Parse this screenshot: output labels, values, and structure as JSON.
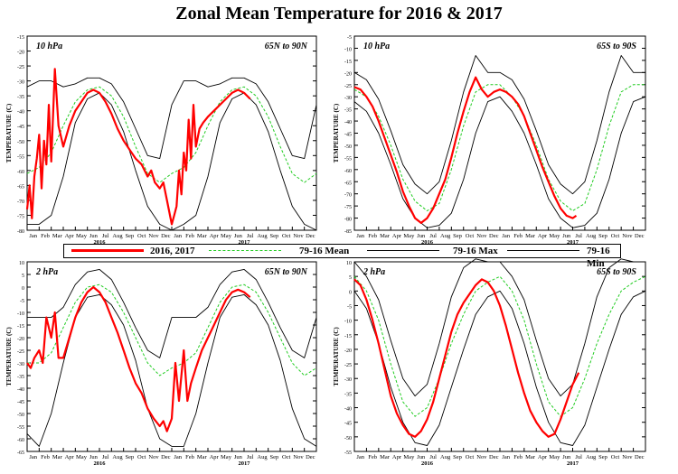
{
  "title": "Zonal Mean Temperature for 2016 & 2017",
  "legend": {
    "items": [
      {
        "label": "2016, 2017",
        "color": "#ff0000",
        "style": "solid-thick"
      },
      {
        "label": "79-16 Mean",
        "color": "#22cc22",
        "style": "dashed"
      },
      {
        "label": "79-16 Max",
        "color": "#000000",
        "style": "solid"
      },
      {
        "label": "79-16 Min",
        "color": "#000000",
        "style": "solid"
      }
    ]
  },
  "chart_data": [
    {
      "type": "line",
      "id": "tl",
      "level": "10 hPa",
      "region": "65N to 90N",
      "ylabel": "TEMPERATURE (C)",
      "ylim": [
        -80,
        -15
      ],
      "yticks": [
        -15,
        -20,
        -25,
        -30,
        -35,
        -40,
        -45,
        -50,
        -55,
        -60,
        -65,
        -70,
        -75,
        -80
      ],
      "x_months": [
        "Jan",
        "Feb",
        "Mar",
        "Apr",
        "May",
        "Jun",
        "Jul",
        "Aug",
        "Sep",
        "Oct",
        "Nov",
        "Dec",
        "Jan",
        "Feb",
        "Mar",
        "Apr",
        "May",
        "Jun",
        "Jul",
        "Aug",
        "Sep",
        "Oct",
        "Nov",
        "Dec"
      ],
      "x_years": [
        "2016",
        "2017"
      ],
      "series": [
        {
          "name": "79-16 Mean",
          "x": [
            0,
            1,
            2,
            3,
            4,
            5,
            6,
            7,
            8,
            9,
            10,
            11,
            12
          ],
          "values": [
            -61,
            -59,
            -54,
            -45,
            -37,
            -33,
            -32,
            -35,
            -42,
            -52,
            -61,
            -64,
            -61
          ]
        },
        {
          "name": "79-16 Max",
          "x": [
            0,
            1,
            2,
            3,
            4,
            5,
            6,
            7,
            8,
            9,
            10,
            11,
            12
          ],
          "values": [
            -32,
            -30,
            -30,
            -32,
            -31,
            -29,
            -29,
            -31,
            -37,
            -46,
            -55,
            -56,
            -38
          ]
        },
        {
          "name": "79-16 Min",
          "x": [
            0,
            1,
            2,
            3,
            4,
            5,
            6,
            7,
            8,
            9,
            10,
            11,
            12
          ],
          "values": [
            -78,
            -78,
            -75,
            -62,
            -44,
            -36,
            -34,
            -38,
            -47,
            -60,
            -72,
            -78,
            -80
          ]
        },
        {
          "name": "2016, 2017",
          "x": [
            0,
            0.2,
            0.4,
            0.6,
            0.8,
            1,
            1.2,
            1.4,
            1.6,
            1.8,
            2,
            2.3,
            2.6,
            3,
            3.5,
            4,
            4.5,
            5,
            5.5,
            6,
            6.5,
            7,
            7.5,
            8,
            8.5,
            9,
            9.5,
            10,
            10.3,
            10.6,
            11,
            11.3,
            11.6,
            12,
            12.2,
            12.4,
            12.6,
            12.8,
            13,
            13.2,
            13.4,
            13.6,
            13.8,
            14,
            14.3,
            14.6,
            15,
            15.5,
            16,
            16.5,
            17,
            17.5,
            18,
            18.5
          ],
          "values": [
            -73,
            -65,
            -76,
            -62,
            -56,
            -48,
            -66,
            -50,
            -58,
            -38,
            -57,
            -26,
            -45,
            -52,
            -45,
            -40,
            -37,
            -34,
            -33,
            -34,
            -37,
            -41,
            -46,
            -50,
            -53,
            -56,
            -58,
            -62,
            -60,
            -64,
            -66,
            -64,
            -70,
            -78,
            -75,
            -72,
            -60,
            -68,
            -54,
            -60,
            -43,
            -56,
            -38,
            -52,
            -46,
            -44,
            -42,
            -40,
            -38,
            -36,
            -34,
            -33,
            -34,
            -36
          ]
        }
      ]
    },
    {
      "type": "line",
      "id": "tr",
      "level": "10 hPa",
      "region": "65S to 90S",
      "ylabel": "TEMPERATURE (C)",
      "ylim": [
        -85,
        -5
      ],
      "yticks": [
        -5,
        -10,
        -15,
        -20,
        -25,
        -30,
        -35,
        -40,
        -45,
        -50,
        -55,
        -60,
        -65,
        -70,
        -75,
        -80,
        -85
      ],
      "x_months": [
        "Jan",
        "Feb",
        "Mar",
        "Apr",
        "May",
        "Jun",
        "Jul",
        "Aug",
        "Sep",
        "Oct",
        "Nov",
        "Dec",
        "Jan",
        "Feb",
        "Mar",
        "Apr",
        "May",
        "Jun",
        "Jul",
        "Aug",
        "Sep",
        "Oct",
        "Nov",
        "Dec"
      ],
      "x_years": [
        "2016",
        "2017"
      ],
      "series": [
        {
          "name": "79-16 Mean",
          "x": [
            0,
            1,
            2,
            3,
            4,
            5,
            6,
            7,
            8,
            9,
            10,
            11,
            12
          ],
          "values": [
            -27,
            -30,
            -38,
            -50,
            -64,
            -73,
            -77,
            -74,
            -60,
            -42,
            -28,
            -25,
            -25
          ]
        },
        {
          "name": "79-16 Max",
          "x": [
            0,
            1,
            2,
            3,
            4,
            5,
            6,
            7,
            8,
            9,
            10,
            11,
            12
          ],
          "values": [
            -20,
            -23,
            -31,
            -44,
            -58,
            -66,
            -70,
            -65,
            -48,
            -28,
            -13,
            -20,
            -20
          ]
        },
        {
          "name": "79-16 Min",
          "x": [
            0,
            1,
            2,
            3,
            4,
            5,
            6,
            7,
            8,
            9,
            10,
            11,
            12
          ],
          "values": [
            -32,
            -36,
            -45,
            -58,
            -72,
            -80,
            -84,
            -83,
            -78,
            -64,
            -45,
            -32,
            -30
          ]
        },
        {
          "name": "2016, 2017",
          "x": [
            0,
            0.5,
            1,
            1.5,
            2,
            2.5,
            3,
            3.5,
            4,
            4.5,
            5,
            5.5,
            6,
            6.5,
            7,
            7.5,
            8,
            8.5,
            9,
            9.5,
            10,
            10.5,
            11,
            11.5,
            12,
            12.5,
            13,
            13.5,
            14,
            14.5,
            15,
            15.5,
            16,
            16.5,
            17,
            17.5,
            18,
            18.3
          ],
          "values": [
            -26,
            -27,
            -30,
            -34,
            -40,
            -47,
            -54,
            -61,
            -69,
            -75,
            -80,
            -82,
            -80,
            -76,
            -70,
            -64,
            -55,
            -45,
            -36,
            -28,
            -22,
            -27,
            -30,
            -28,
            -27,
            -28,
            -30,
            -33,
            -38,
            -45,
            -52,
            -59,
            -65,
            -71,
            -76,
            -79,
            -80,
            -79
          ]
        }
      ]
    },
    {
      "type": "line",
      "id": "bl",
      "level": "2 hPa",
      "region": "65N to 90N",
      "ylabel": "TEMPERATURE (C)",
      "ylim": [
        -65,
        10
      ],
      "yticks": [
        10,
        5,
        0,
        -5,
        -10,
        -15,
        -20,
        -25,
        -30,
        -35,
        -40,
        -45,
        -50,
        -55,
        -60,
        -65
      ],
      "x_months": [
        "Jan",
        "Feb",
        "Mar",
        "Apr",
        "May",
        "Jun",
        "Jul",
        "Aug",
        "Sep",
        "Oct",
        "Nov",
        "Dec",
        "Jan",
        "Feb",
        "Mar",
        "Apr",
        "May",
        "Jun",
        "Jul",
        "Aug",
        "Sep",
        "Oct",
        "Nov",
        "Dec"
      ],
      "x_years": [
        "2016",
        "2017"
      ],
      "series": [
        {
          "name": "79-16 Mean",
          "x": [
            0,
            1,
            2,
            3,
            4,
            5,
            6,
            7,
            8,
            9,
            10,
            11,
            12
          ],
          "values": [
            -30,
            -30,
            -26,
            -16,
            -6,
            0,
            1,
            -2,
            -10,
            -20,
            -30,
            -35,
            -32
          ]
        },
        {
          "name": "79-16 Max",
          "x": [
            0,
            1,
            2,
            3,
            4,
            5,
            6,
            7,
            8,
            9,
            10,
            11,
            12
          ],
          "values": [
            -12,
            -12,
            -12,
            -8,
            1,
            6,
            7,
            3,
            -6,
            -16,
            -25,
            -28,
            -12
          ]
        },
        {
          "name": "79-16 Min",
          "x": [
            0,
            1,
            2,
            3,
            4,
            5,
            6,
            7,
            8,
            9,
            10,
            11,
            12
          ],
          "values": [
            -58,
            -63,
            -50,
            -30,
            -12,
            -4,
            -3,
            -7,
            -15,
            -29,
            -48,
            -60,
            -63
          ]
        },
        {
          "name": "2016, 2017",
          "x": [
            0,
            0.3,
            0.6,
            1,
            1.3,
            1.6,
            2,
            2.3,
            2.6,
            3,
            3.5,
            4,
            4.5,
            5,
            5.5,
            6,
            6.5,
            7,
            7.5,
            8,
            8.5,
            9,
            9.5,
            10,
            10.5,
            11,
            11.3,
            11.6,
            12,
            12.3,
            12.6,
            13,
            13.3,
            13.6,
            14,
            14.5,
            15,
            15.5,
            16,
            16.5,
            17,
            17.5,
            18,
            18.5
          ],
          "values": [
            -30,
            -32,
            -28,
            -25,
            -30,
            -12,
            -20,
            -10,
            -28,
            -28,
            -20,
            -12,
            -6,
            -2,
            0,
            -2,
            -6,
            -12,
            -18,
            -25,
            -32,
            -38,
            -42,
            -48,
            -52,
            -55,
            -53,
            -57,
            -52,
            -30,
            -45,
            -25,
            -45,
            -38,
            -32,
            -25,
            -20,
            -15,
            -10,
            -5,
            -2,
            -1,
            -2,
            -4
          ]
        }
      ]
    },
    {
      "type": "line",
      "id": "br",
      "level": "2 hPa",
      "region": "65S to 90S",
      "ylabel": "TEMPERATURE (C)",
      "ylim": [
        -55,
        10
      ],
      "yticks": [
        10,
        5,
        0,
        -5,
        -10,
        -15,
        -20,
        -25,
        -30,
        -35,
        -40,
        -45,
        -50,
        -55
      ],
      "x_months": [
        "Jan",
        "Feb",
        "Mar",
        "Apr",
        "May",
        "Jun",
        "Jul",
        "Aug",
        "Sep",
        "Oct",
        "Nov",
        "Dec",
        "Jan",
        "Feb",
        "Mar",
        "Apr",
        "May",
        "Jun",
        "Jul",
        "Aug",
        "Sep",
        "Oct",
        "Nov",
        "Dec"
      ],
      "x_years": [
        "2016",
        "2017"
      ],
      "series": [
        {
          "name": "79-16 Mean",
          "x": [
            0,
            1,
            2,
            3,
            4,
            5,
            6,
            7,
            8,
            9,
            10,
            11,
            12
          ],
          "values": [
            5,
            0,
            -10,
            -25,
            -38,
            -43,
            -40,
            -30,
            -18,
            -8,
            0,
            3,
            5
          ]
        },
        {
          "name": "79-16 Max",
          "x": [
            0,
            1,
            2,
            3,
            4,
            5,
            6,
            7,
            8,
            9,
            10,
            11,
            12
          ],
          "values": [
            10,
            5,
            -3,
            -17,
            -30,
            -36,
            -32,
            -18,
            -2,
            8,
            11,
            10,
            10
          ]
        },
        {
          "name": "79-16 Min",
          "x": [
            0,
            1,
            2,
            3,
            4,
            5,
            6,
            7,
            8,
            9,
            10,
            11,
            12
          ],
          "values": [
            0,
            -6,
            -18,
            -33,
            -45,
            -52,
            -53,
            -46,
            -33,
            -20,
            -8,
            -2,
            0
          ]
        },
        {
          "name": "2016, 2017",
          "x": [
            0,
            0.5,
            1,
            1.5,
            2,
            2.5,
            3,
            3.5,
            4,
            4.5,
            5,
            5.5,
            6,
            6.5,
            7,
            7.5,
            8,
            8.5,
            9,
            9.5,
            10,
            10.5,
            11,
            11.5,
            12,
            12.5,
            13,
            13.5,
            14,
            14.5,
            15,
            15.5,
            16,
            16.5,
            17,
            17.5,
            18,
            18.5
          ],
          "values": [
            4,
            2,
            -3,
            -10,
            -18,
            -27,
            -36,
            -42,
            -46,
            -49,
            -50,
            -48,
            -44,
            -38,
            -30,
            -22,
            -14,
            -8,
            -4,
            -1,
            2,
            4,
            3,
            0,
            -5,
            -12,
            -20,
            -28,
            -35,
            -41,
            -45,
            -48,
            -50,
            -49,
            -44,
            -38,
            -32,
            -28
          ]
        }
      ]
    }
  ]
}
